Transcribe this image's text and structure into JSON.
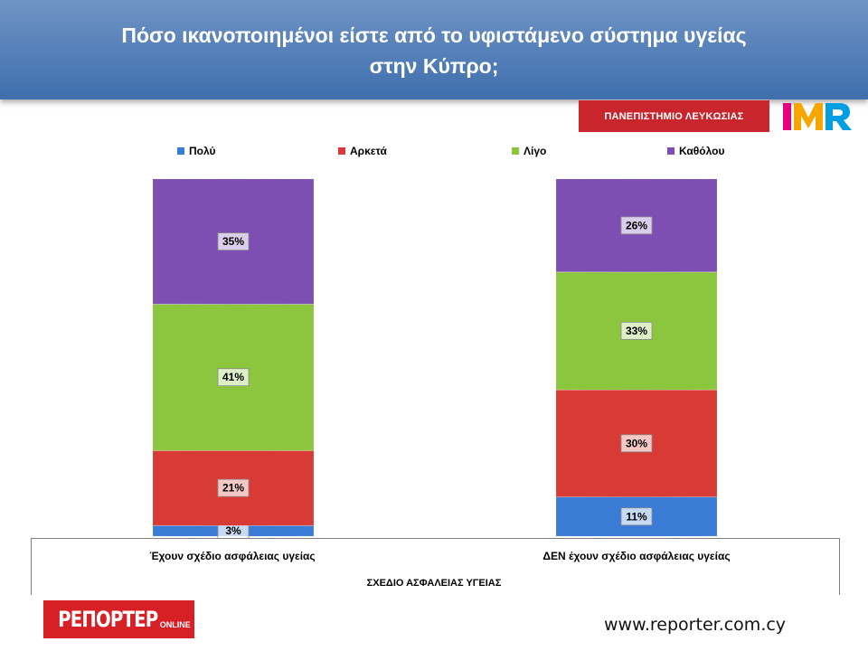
{
  "title_line1": "Πόσο ικανοποιημένοι είστε από το υφιστάμενο σύστημα υγείας",
  "title_line2": "στην Κύπρο;",
  "university_label": "ΠΑΝΕΠΙΣΤΗΜΙΟ ΛΕΥΚΩΣΙΑΣ",
  "imr_logo": {
    "text": "IMR",
    "colors": [
      "#e6007e",
      "#f7a600",
      "#009fe3"
    ]
  },
  "reporter_logo": {
    "main": "ΡΕΠΟΡΤΕΡ",
    "sub": "ONLINE"
  },
  "website": "www.reporter.com.cy",
  "chart_data": {
    "type": "bar",
    "stacked": true,
    "normalized_percent": true,
    "categories": [
      "Έχουν σχέδιο ασφάλειας υγείας",
      "ΔΕΝ έχουν σχέδιο ασφάλειας υγείας"
    ],
    "xlabel": "ΣΧΕΔΙΟ ΑΣΦΑΛΕΙΑΣ ΥΓΕΙΑΣ",
    "ylabel": "",
    "ylim": [
      0,
      100
    ],
    "legend_position": "top",
    "series": [
      {
        "name": "Πολύ",
        "values": [
          3,
          11
        ],
        "labels": [
          "3%",
          "11%"
        ],
        "color": "#3a7bd5"
      },
      {
        "name": "Αρκετά",
        "values": [
          21,
          30
        ],
        "labels": [
          "21%",
          "30%"
        ],
        "color": "#d83b35"
      },
      {
        "name": "Λίγο",
        "values": [
          41,
          33
        ],
        "labels": [
          "41%",
          "33%"
        ],
        "color": "#8cc63e"
      },
      {
        "name": "Καθόλου",
        "values": [
          35,
          26
        ],
        "labels": [
          "35%",
          "26%"
        ],
        "color": "#7d4fb2"
      }
    ]
  }
}
